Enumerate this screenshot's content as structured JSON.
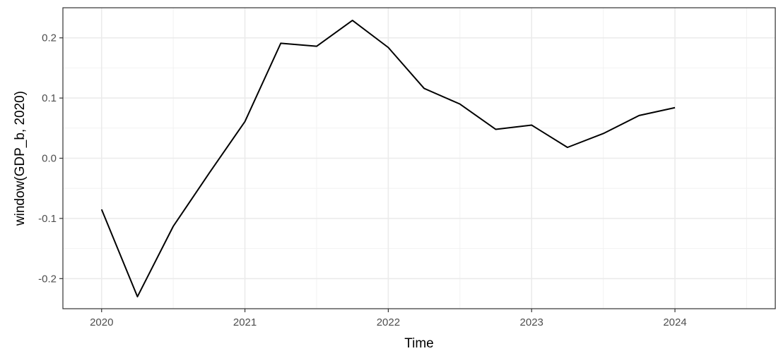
{
  "chart_data": {
    "type": "line",
    "title": "",
    "xlabel": "Time",
    "ylabel": "window(GDP_b, 2020)",
    "xlim": [
      2019.73,
      2024.7
    ],
    "ylim": [
      -0.25,
      0.25
    ],
    "x_ticks": [
      2020,
      2021,
      2022,
      2023,
      2024
    ],
    "x_tick_labels": [
      "2020",
      "2021",
      "2022",
      "2023",
      "2024"
    ],
    "y_ticks": [
      -0.2,
      -0.1,
      0.0,
      0.1,
      0.2
    ],
    "y_tick_labels": [
      "-0.2",
      "-0.1",
      "0.0",
      "0.1",
      "0.2"
    ],
    "grid": true,
    "legend": "none",
    "line_color": "#000000",
    "series": [
      {
        "x": [
          2020.0,
          2020.25,
          2020.5,
          2020.75,
          2021.0,
          2021.25,
          2021.5,
          2021.75,
          2022.0,
          2022.25,
          2022.5,
          2022.75,
          2023.0,
          2023.25,
          2023.5,
          2023.75,
          2024.0
        ],
        "values": [
          -0.085,
          -0.23,
          -0.113,
          -0.025,
          0.061,
          0.191,
          0.186,
          0.229,
          0.184,
          0.116,
          0.09,
          0.048,
          0.055,
          0.018,
          0.041,
          0.071,
          0.084
        ]
      }
    ]
  }
}
